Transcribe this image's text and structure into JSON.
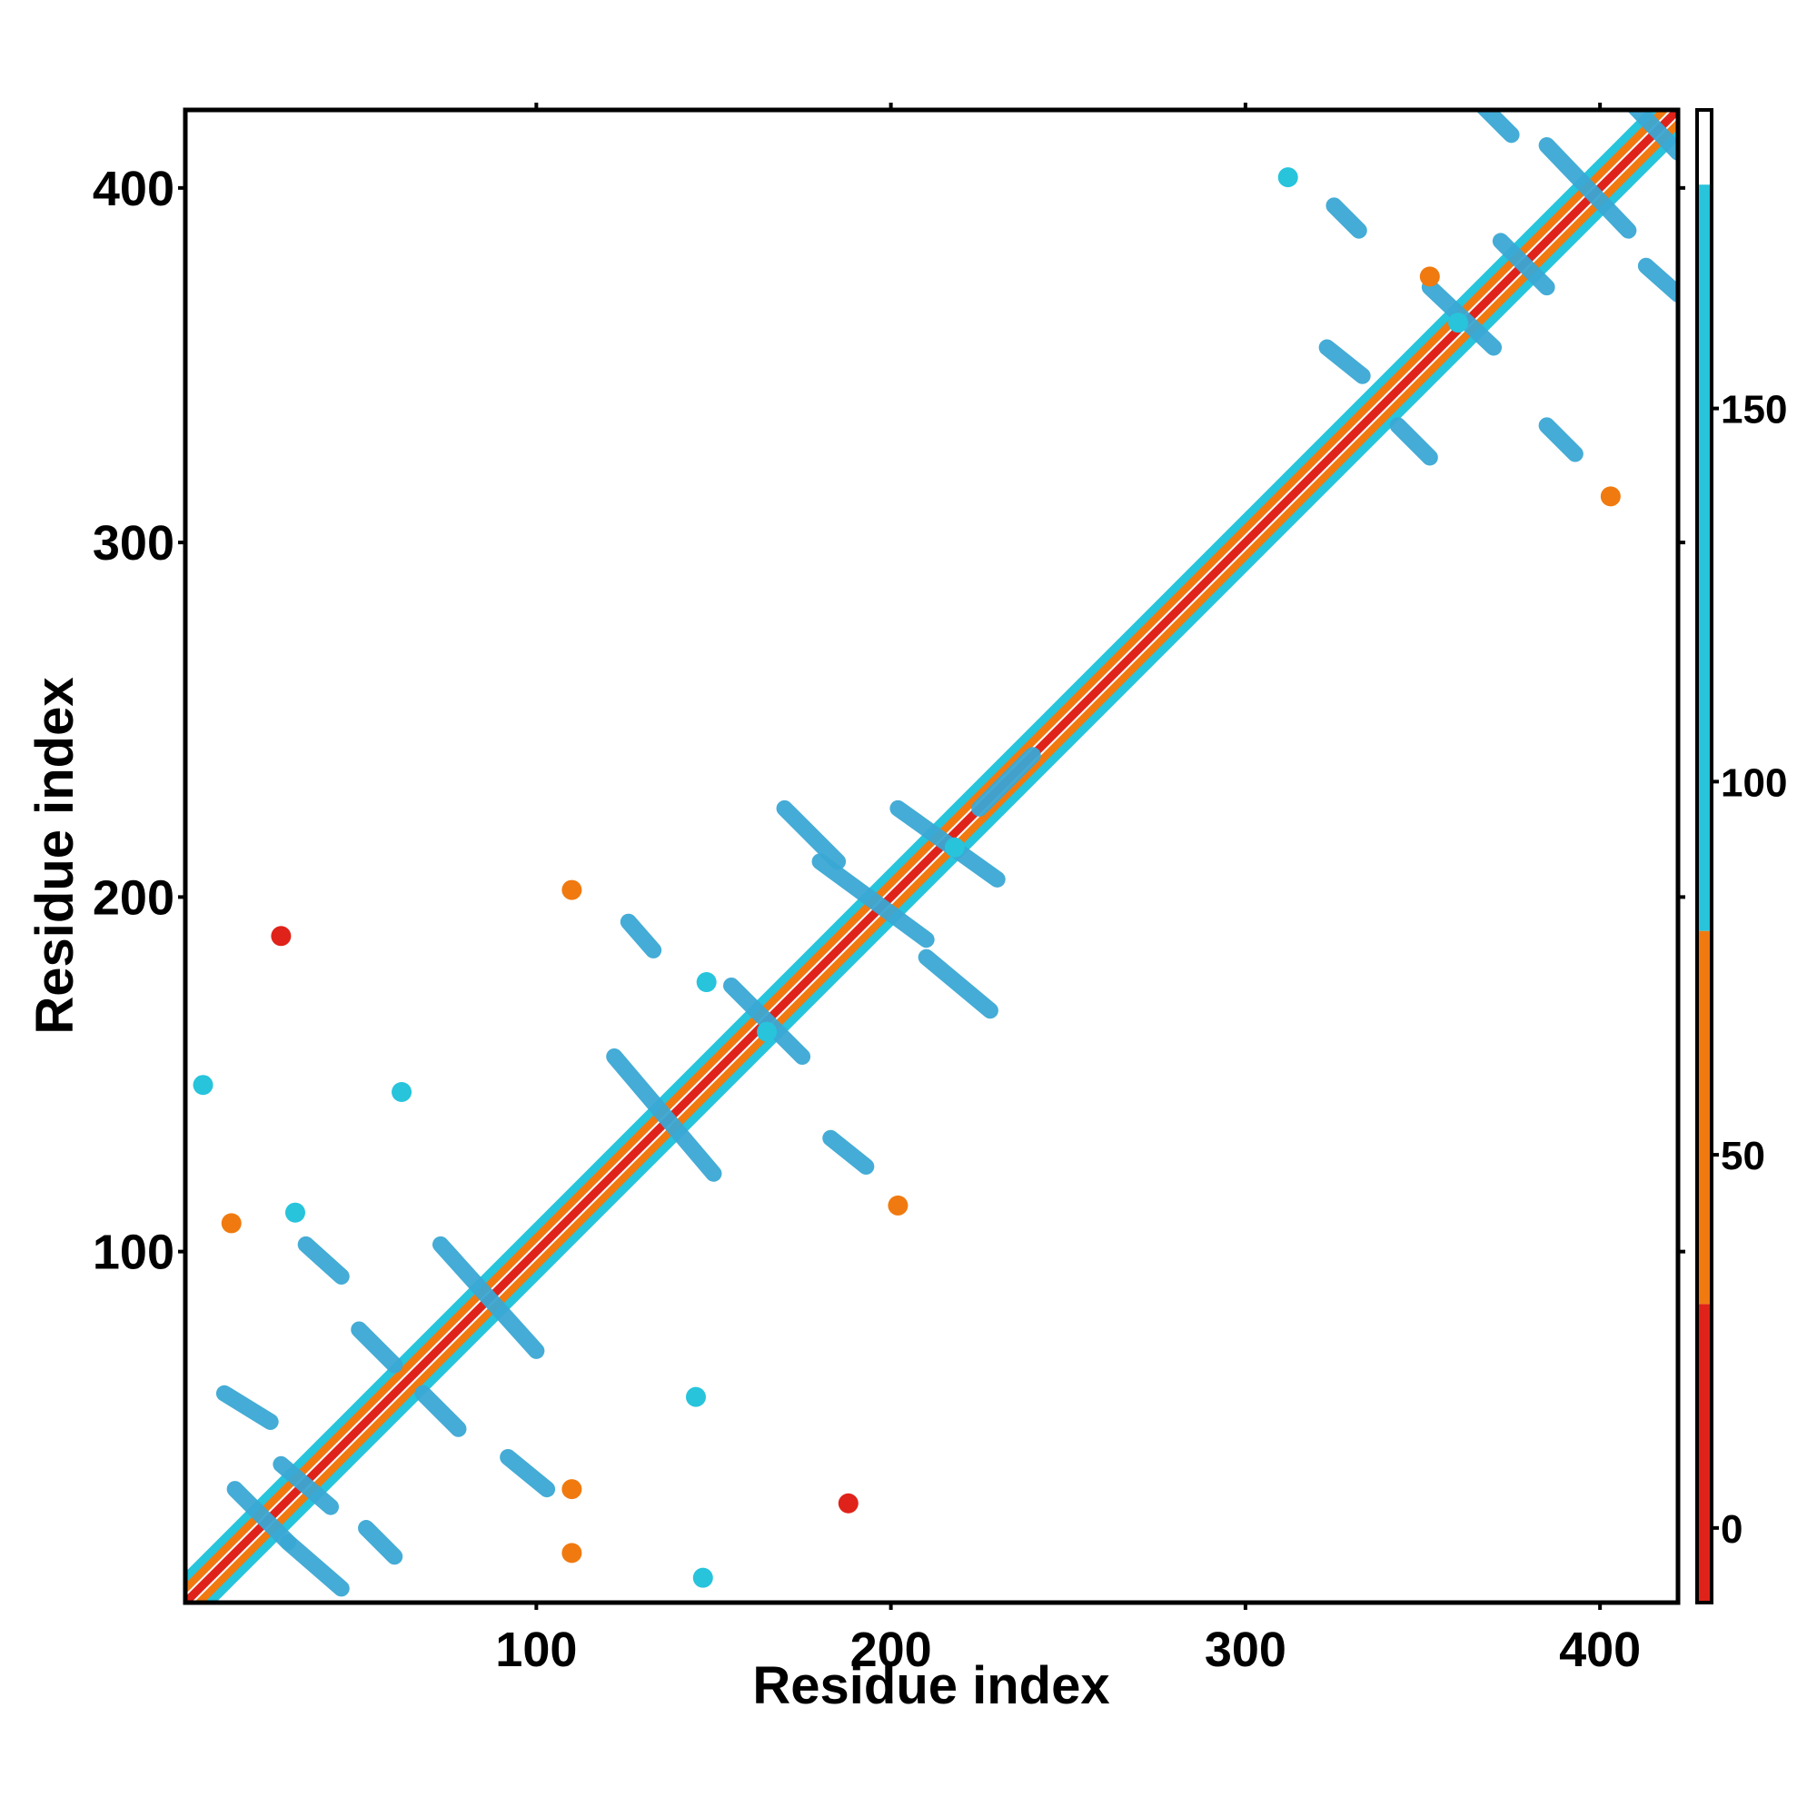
{
  "chart_data": {
    "type": "heatmap",
    "title": "",
    "xlabel": "Residue index",
    "ylabel": "Residue index",
    "xlim": [
      1,
      422
    ],
    "ylim": [
      1,
      422
    ],
    "x_ticks": [
      100,
      200,
      300,
      400
    ],
    "y_ticks": [
      100,
      200,
      300,
      400
    ],
    "x_tick_labels": [
      "100",
      "200",
      "300",
      "400"
    ],
    "y_tick_labels": [
      "100",
      "200",
      "300",
      "400"
    ],
    "grid": false,
    "colorbar": {
      "range": [
        -10,
        190
      ],
      "ticks": [
        0,
        50,
        100,
        150
      ],
      "tick_labels": [
        "0",
        "50",
        "100",
        "150"
      ],
      "bands": [
        {
          "from": -10,
          "to": 30,
          "color": "#e0231a"
        },
        {
          "from": 30,
          "to": 80,
          "color": "#f07a10"
        },
        {
          "from": 80,
          "to": 180,
          "color": "#27c4dc"
        },
        {
          "from": 180,
          "to": 190,
          "color": "#ffffff"
        }
      ]
    },
    "segments": [
      {
        "x1": 1,
        "y1": 1,
        "x2": 422,
        "y2": 422,
        "color": "#e0231a"
      },
      {
        "x1": 5,
        "y1": 1,
        "x2": 422,
        "y2": 418,
        "color": "#f07a10"
      },
      {
        "x1": 1,
        "y1": 5,
        "x2": 418,
        "y2": 422,
        "color": "#f07a10"
      },
      {
        "x1": 8,
        "y1": 1,
        "x2": 422,
        "y2": 415,
        "color": "#27c4dc"
      },
      {
        "x1": 1,
        "y1": 8,
        "x2": 415,
        "y2": 422,
        "color": "#27c4dc"
      },
      {
        "x1": 15,
        "y1": 33,
        "x2": 30,
        "y2": 18,
        "color": "#3aa8d4"
      },
      {
        "x1": 30,
        "y1": 18,
        "x2": 45,
        "y2": 5,
        "color": "#3aa8d4"
      },
      {
        "x1": 12,
        "y1": 60,
        "x2": 25,
        "y2": 52,
        "color": "#3aa8d4"
      },
      {
        "x1": 28,
        "y1": 40,
        "x2": 42,
        "y2": 28,
        "color": "#3aa8d4"
      },
      {
        "x1": 35,
        "y1": 102,
        "x2": 45,
        "y2": 93,
        "color": "#3aa8d4"
      },
      {
        "x1": 50,
        "y1": 78,
        "x2": 60,
        "y2": 68,
        "color": "#3aa8d4"
      },
      {
        "x1": 68,
        "y1": 60,
        "x2": 78,
        "y2": 50,
        "color": "#3aa8d4"
      },
      {
        "x1": 52,
        "y1": 22,
        "x2": 60,
        "y2": 14,
        "color": "#3aa8d4"
      },
      {
        "x1": 92,
        "y1": 42,
        "x2": 103,
        "y2": 33,
        "color": "#3aa8d4"
      },
      {
        "x1": 73,
        "y1": 102,
        "x2": 100,
        "y2": 72,
        "color": "#3aa8d4"
      },
      {
        "x1": 122,
        "y1": 155,
        "x2": 150,
        "y2": 122,
        "color": "#3aa8d4"
      },
      {
        "x1": 155,
        "y1": 175,
        "x2": 175,
        "y2": 155,
        "color": "#3aa8d4"
      },
      {
        "x1": 170,
        "y1": 225,
        "x2": 185,
        "y2": 210,
        "color": "#3aa8d4"
      },
      {
        "x1": 180,
        "y1": 210,
        "x2": 210,
        "y2": 188,
        "color": "#3aa8d4"
      },
      {
        "x1": 202,
        "y1": 225,
        "x2": 230,
        "y2": 205,
        "color": "#3aa8d4"
      },
      {
        "x1": 210,
        "y1": 183,
        "x2": 228,
        "y2": 168,
        "color": "#3aa8d4"
      },
      {
        "x1": 126,
        "y1": 193,
        "x2": 133,
        "y2": 185,
        "color": "#3aa8d4"
      },
      {
        "x1": 183,
        "y1": 132,
        "x2": 193,
        "y2": 124,
        "color": "#3aa8d4"
      },
      {
        "x1": 225,
        "y1": 225,
        "x2": 240,
        "y2": 240,
        "color": "#3aa8d4"
      },
      {
        "x1": 325,
        "y1": 395,
        "x2": 332,
        "y2": 388,
        "color": "#3aa8d4"
      },
      {
        "x1": 323,
        "y1": 355,
        "x2": 333,
        "y2": 347,
        "color": "#3aa8d4"
      },
      {
        "x1": 343,
        "y1": 333,
        "x2": 352,
        "y2": 324,
        "color": "#3aa8d4"
      },
      {
        "x1": 352,
        "y1": 372,
        "x2": 370,
        "y2": 355,
        "color": "#3aa8d4"
      },
      {
        "x1": 372,
        "y1": 385,
        "x2": 385,
        "y2": 372,
        "color": "#3aa8d4"
      },
      {
        "x1": 385,
        "y1": 333,
        "x2": 393,
        "y2": 325,
        "color": "#3aa8d4"
      },
      {
        "x1": 385,
        "y1": 412,
        "x2": 408,
        "y2": 388,
        "color": "#3aa8d4"
      },
      {
        "x1": 403,
        "y1": 430,
        "x2": 422,
        "y2": 410,
        "color": "#3aa8d4"
      },
      {
        "x1": 360,
        "y1": 430,
        "x2": 375,
        "y2": 415,
        "color": "#3aa8d4"
      },
      {
        "x1": 413,
        "y1": 378,
        "x2": 422,
        "y2": 370,
        "color": "#3aa8d4"
      }
    ],
    "blobs": [
      {
        "x": 6,
        "y": 147,
        "color": "#27c4dc"
      },
      {
        "x": 14,
        "y": 108,
        "color": "#f07a10"
      },
      {
        "x": 28,
        "y": 189,
        "color": "#e0231a"
      },
      {
        "x": 32,
        "y": 111,
        "color": "#27c4dc"
      },
      {
        "x": 62,
        "y": 145,
        "color": "#27c4dc"
      },
      {
        "x": 110,
        "y": 202,
        "color": "#f07a10"
      },
      {
        "x": 145,
        "y": 59,
        "color": "#27c4dc"
      },
      {
        "x": 147,
        "y": 8,
        "color": "#27c4dc"
      },
      {
        "x": 188,
        "y": 29,
        "color": "#e0231a"
      },
      {
        "x": 110,
        "y": 15,
        "color": "#f07a10"
      },
      {
        "x": 110,
        "y": 33,
        "color": "#f07a10"
      },
      {
        "x": 148,
        "y": 176,
        "color": "#27c4dc"
      },
      {
        "x": 165,
        "y": 162,
        "color": "#27c4dc"
      },
      {
        "x": 202,
        "y": 113,
        "color": "#f07a10"
      },
      {
        "x": 218,
        "y": 214,
        "color": "#27c4dc"
      },
      {
        "x": 312,
        "y": 403,
        "color": "#27c4dc"
      },
      {
        "x": 352,
        "y": 375,
        "color": "#f07a10"
      },
      {
        "x": 360,
        "y": 362,
        "color": "#27c4dc"
      },
      {
        "x": 403,
        "y": 313,
        "color": "#f07a10"
      }
    ]
  }
}
